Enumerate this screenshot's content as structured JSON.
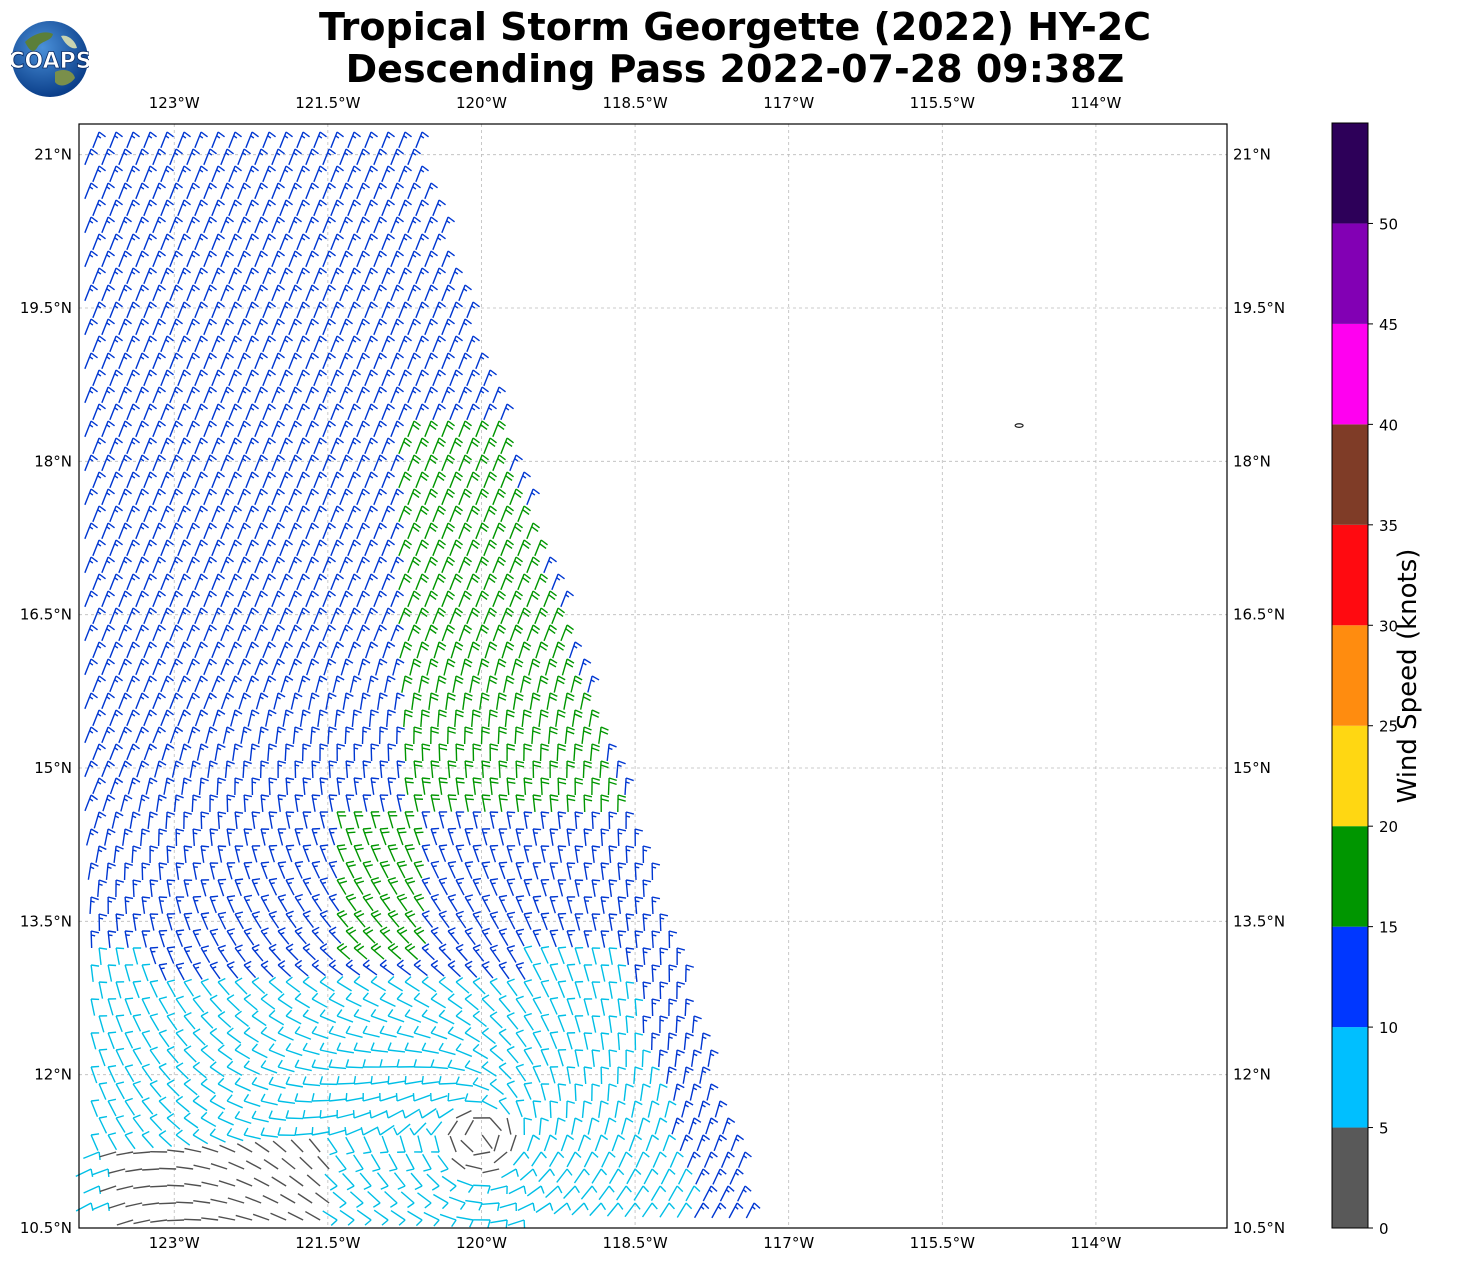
{
  "title": {
    "line1": "Tropical Storm Georgette (2022) HY-2C",
    "line2": "Descending Pass 2022-07-28 09:38Z"
  },
  "logo": {
    "text": "COAPS",
    "icon": "globe-logo-icon"
  },
  "map": {
    "lon_labels": [
      "123°W",
      "121.5°W",
      "120°W",
      "118.5°W",
      "117°W",
      "115.5°W",
      "114°W"
    ],
    "lon_values": [
      -123,
      -121.5,
      -120,
      -118.5,
      -117,
      -115.5,
      -114
    ],
    "lat_labels": [
      "21°N",
      "19.5°N",
      "18°N",
      "16.5°N",
      "15°N",
      "13.5°N",
      "12°N",
      "10.5°N"
    ],
    "lat_values": [
      21,
      19.5,
      18,
      16.5,
      15,
      13.5,
      12,
      10.5
    ],
    "lon_range": [
      -123.93,
      -112.72
    ],
    "lat_range": [
      10.5,
      21.3
    ],
    "gridlines": true,
    "storm_center": {
      "lon": -120.0,
      "lat": 11.4
    },
    "island_marker": {
      "lon": -114.75,
      "lat": 18.35
    }
  },
  "colorbar": {
    "label": "Wind Speed (knots)",
    "ticks": [
      "0",
      "5",
      "10",
      "15",
      "20",
      "25",
      "30",
      "35",
      "40",
      "45",
      "50"
    ],
    "bins": [
      {
        "min": 0,
        "max": 5,
        "color": "#595959"
      },
      {
        "min": 5,
        "max": 10,
        "color": "#00bfff"
      },
      {
        "min": 10,
        "max": 15,
        "color": "#0037ff"
      },
      {
        "min": 15,
        "max": 20,
        "color": "#009600"
      },
      {
        "min": 20,
        "max": 25,
        "color": "#ffd712"
      },
      {
        "min": 25,
        "max": 30,
        "color": "#ff8c0f"
      },
      {
        "min": 30,
        "max": 35,
        "color": "#ff0a10"
      },
      {
        "min": 35,
        "max": 40,
        "color": "#7f3c27"
      },
      {
        "min": 40,
        "max": 45,
        "color": "#ff00f0"
      },
      {
        "min": 45,
        "max": 50,
        "color": "#8200b4"
      },
      {
        "min": 50,
        "max": 55,
        "color": "#2d0059"
      }
    ]
  },
  "barb_colors": {
    "calm": "#505050",
    "light": "#00bfe6",
    "moderate": "#0037d2",
    "strong": "#009600"
  }
}
